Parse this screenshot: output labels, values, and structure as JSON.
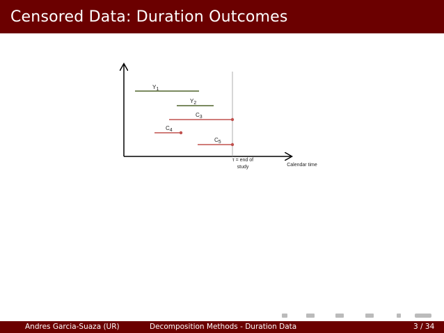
{
  "header": {
    "title": "Censored Data: Duration Outcomes"
  },
  "diagram": {
    "spells": [
      {
        "base": "Y",
        "sub": "1"
      },
      {
        "base": "Y",
        "sub": "2"
      },
      {
        "base": "C",
        "sub": "3"
      },
      {
        "base": "C",
        "sub": "4"
      },
      {
        "base": "C",
        "sub": "5"
      }
    ],
    "tau_label": [
      "τ = end of",
      "study"
    ],
    "x_axis_label": "Calendar time"
  },
  "footer": {
    "author": "Andres Garcia-Suaza (UR)",
    "short_title": "Decomposition Methods - Duration Data",
    "page": "3 / 34"
  }
}
